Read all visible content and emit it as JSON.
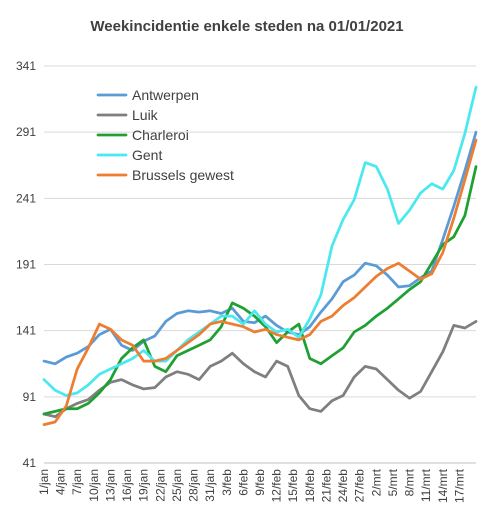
{
  "chart_data": {
    "type": "line",
    "title": "Weekincidentie  enkele steden na 01/01/2021",
    "xlabel": "",
    "ylabel": "",
    "ylim": [
      41,
      341
    ],
    "yticks": [
      41,
      91,
      141,
      191,
      241,
      291,
      341
    ],
    "grid": "horizontal",
    "legend": "top-left",
    "x_tick_labels": [
      "1/jan",
      "4/jan",
      "7/jan",
      "10/jan",
      "13/jan",
      "16/jan",
      "19/jan",
      "22/jan",
      "25/jan",
      "28/jan",
      "31/jan",
      "3/feb",
      "6/feb",
      "9/feb",
      "12/feb",
      "15/feb",
      "18/feb",
      "21/feb",
      "24/feb",
      "27/feb",
      "2/mrt",
      "5/mrt",
      "8/mrt",
      "11/mrt",
      "14/mrt",
      "17/mrt"
    ],
    "x_tick_days": [
      0,
      3,
      6,
      9,
      12,
      15,
      18,
      21,
      24,
      27,
      30,
      33,
      36,
      39,
      42,
      45,
      48,
      51,
      54,
      57,
      60,
      63,
      66,
      69,
      72,
      75
    ],
    "series": [
      {
        "name": "Antwerpen",
        "color": "#5b9bd5",
        "days": [
          0,
          2,
          4,
          6,
          8,
          10,
          12,
          14,
          16,
          18,
          20,
          22,
          24,
          26,
          28,
          30,
          32,
          34,
          36,
          38,
          40,
          42,
          44,
          46,
          48,
          50,
          52,
          54,
          56,
          58,
          60,
          62,
          64,
          66,
          68,
          70,
          72,
          74,
          76,
          78
        ],
        "values": [
          118,
          116,
          121,
          124,
          129,
          138,
          142,
          130,
          126,
          133,
          137,
          148,
          154,
          156,
          155,
          156,
          154,
          158,
          148,
          147,
          152,
          145,
          140,
          138,
          144,
          155,
          165,
          178,
          183,
          192,
          190,
          183,
          174,
          175,
          181,
          186,
          210,
          235,
          262,
          291
        ]
      },
      {
        "name": "Luik",
        "color": "#7f7f7f",
        "days": [
          0,
          2,
          4,
          6,
          8,
          10,
          12,
          14,
          16,
          18,
          20,
          22,
          24,
          26,
          28,
          30,
          32,
          34,
          36,
          38,
          40,
          42,
          44,
          46,
          48,
          50,
          52,
          54,
          56,
          58,
          60,
          62,
          64,
          66,
          68,
          70,
          72,
          74,
          76,
          78
        ],
        "values": [
          78,
          76,
          82,
          86,
          89,
          96,
          102,
          104,
          100,
          97,
          98,
          106,
          110,
          108,
          104,
          114,
          118,
          124,
          116,
          110,
          106,
          118,
          114,
          92,
          82,
          80,
          88,
          92,
          106,
          114,
          112,
          104,
          96,
          90,
          95,
          110,
          125,
          145,
          143,
          148
        ]
      },
      {
        "name": "Charleroi",
        "color": "#1fa033",
        "days": [
          0,
          2,
          4,
          6,
          8,
          10,
          12,
          14,
          16,
          18,
          20,
          22,
          24,
          26,
          28,
          30,
          32,
          34,
          36,
          38,
          40,
          42,
          44,
          46,
          48,
          50,
          52,
          54,
          56,
          58,
          60,
          62,
          64,
          66,
          68,
          70,
          72,
          74,
          76,
          78
        ],
        "values": [
          78,
          80,
          82,
          82,
          86,
          94,
          104,
          120,
          128,
          134,
          114,
          110,
          122,
          126,
          130,
          134,
          144,
          162,
          158,
          152,
          144,
          132,
          140,
          146,
          120,
          116,
          122,
          128,
          140,
          145,
          152,
          158,
          165,
          172,
          178,
          192,
          206,
          212,
          228,
          265
        ]
      },
      {
        "name": "Gent",
        "color": "#4be8f0",
        "days": [
          0,
          2,
          4,
          6,
          8,
          10,
          12,
          14,
          16,
          18,
          20,
          22,
          24,
          26,
          28,
          30,
          32,
          34,
          36,
          38,
          40,
          42,
          44,
          46,
          48,
          50,
          52,
          54,
          56,
          58,
          60,
          62,
          64,
          66,
          68,
          70,
          72,
          74,
          76,
          78
        ],
        "values": [
          104,
          96,
          92,
          94,
          100,
          108,
          112,
          116,
          120,
          126,
          118,
          118,
          126,
          134,
          140,
          146,
          152,
          152,
          146,
          156,
          146,
          140,
          142,
          136,
          150,
          168,
          205,
          225,
          240,
          268,
          265,
          248,
          222,
          232,
          245,
          252,
          248,
          262,
          290,
          325
        ]
      },
      {
        "name": "Brussels gewest",
        "color": "#ed7d31",
        "days": [
          0,
          2,
          4,
          6,
          8,
          10,
          12,
          14,
          16,
          18,
          20,
          22,
          24,
          26,
          28,
          30,
          32,
          34,
          36,
          38,
          40,
          42,
          44,
          46,
          48,
          50,
          52,
          54,
          56,
          58,
          60,
          62,
          64,
          66,
          68,
          70,
          72,
          74,
          76,
          78
        ],
        "values": [
          70,
          72,
          84,
          112,
          128,
          146,
          142,
          134,
          130,
          118,
          118,
          120,
          126,
          132,
          138,
          146,
          148,
          146,
          144,
          140,
          142,
          138,
          136,
          134,
          138,
          148,
          152,
          160,
          166,
          174,
          182,
          188,
          192,
          186,
          180,
          184,
          200,
          226,
          255,
          285
        ]
      }
    ]
  }
}
